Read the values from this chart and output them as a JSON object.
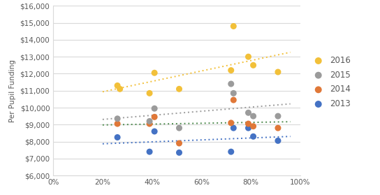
{
  "title": "",
  "ylabel": "Per Pupil Funding",
  "xlabel": "",
  "xlim": [
    0.0,
    1.0
  ],
  "ylim": [
    6000,
    16000
  ],
  "yticks": [
    6000,
    7000,
    8000,
    9000,
    10000,
    11000,
    12000,
    13000,
    14000,
    15000,
    16000
  ],
  "xticks": [
    0.0,
    0.2,
    0.4,
    0.6,
    0.8,
    1.0
  ],
  "series": {
    "2016": {
      "color": "#F2C039",
      "x": [
        0.26,
        0.27,
        0.39,
        0.41,
        0.51,
        0.72,
        0.73,
        0.79,
        0.81,
        0.91
      ],
      "y": [
        11300,
        11100,
        10850,
        12050,
        11100,
        12200,
        14800,
        13000,
        12500,
        12100
      ]
    },
    "2015": {
      "color": "#9B9B9B",
      "x": [
        0.26,
        0.39,
        0.41,
        0.51,
        0.72,
        0.73,
        0.79,
        0.81,
        0.91
      ],
      "y": [
        9350,
        9200,
        9950,
        8800,
        11400,
        10850,
        9700,
        9500,
        9500
      ]
    },
    "2014": {
      "color": "#E07838",
      "x": [
        0.26,
        0.39,
        0.41,
        0.51,
        0.72,
        0.73,
        0.79,
        0.81,
        0.91
      ],
      "y": [
        9050,
        9050,
        9450,
        7900,
        9100,
        10450,
        9050,
        8900,
        8800
      ]
    },
    "2013": {
      "color": "#4472C4",
      "x": [
        0.26,
        0.39,
        0.41,
        0.51,
        0.72,
        0.73,
        0.79,
        0.81,
        0.91
      ],
      "y": [
        8250,
        7400,
        8600,
        7350,
        7400,
        8800,
        8800,
        8300,
        8050
      ]
    }
  },
  "trend_colors": {
    "2016": "#F2C039",
    "2015": "#9B9B9B",
    "2014": "#4E8B4E",
    "2013": "#4472C4"
  },
  "background_color": "#FFFFFF",
  "grid_color": "#D9D9D9",
  "tick_color": "#595959",
  "ylabel_color": "#595959"
}
